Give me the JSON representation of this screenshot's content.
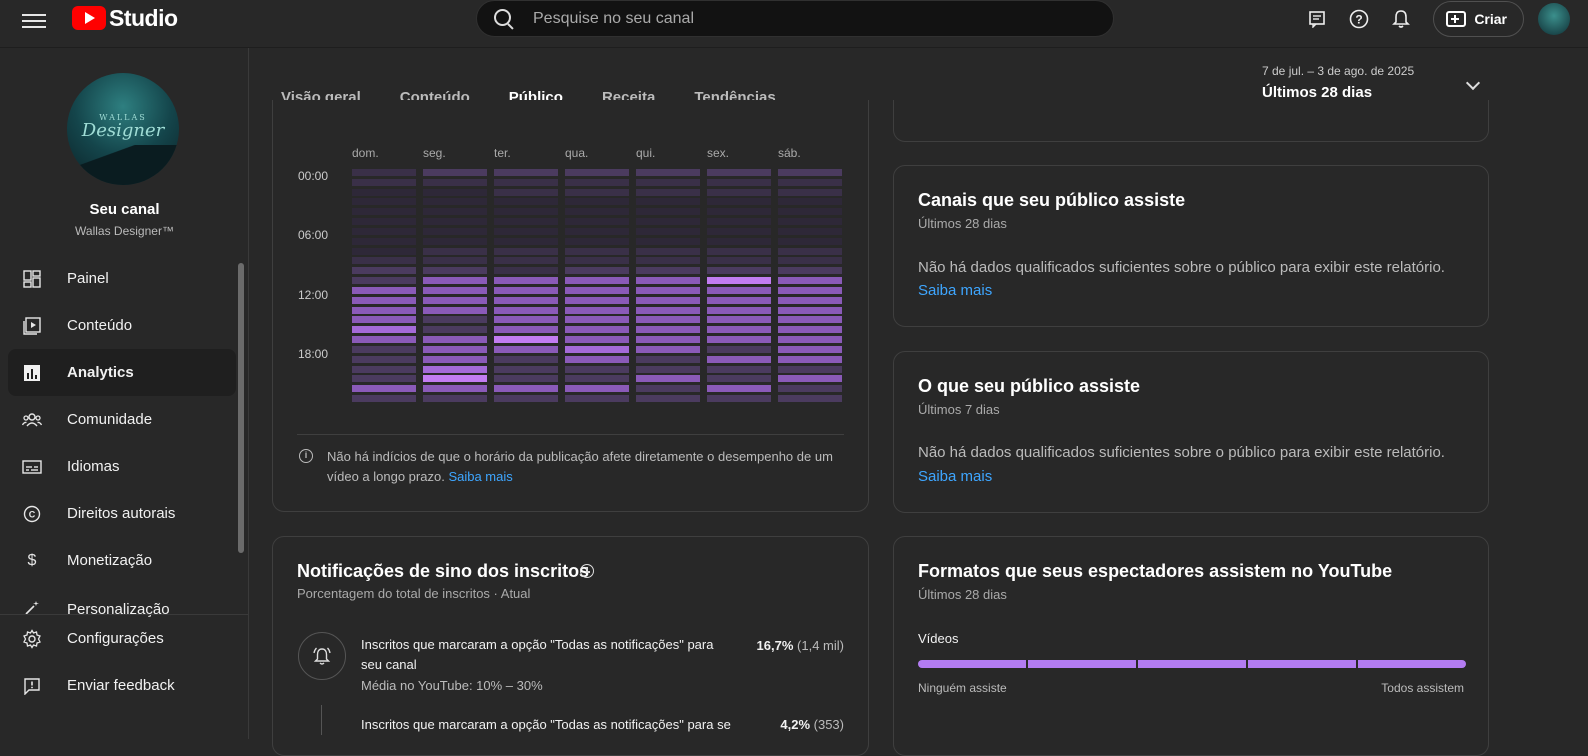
{
  "header": {
    "logo_text": "Studio",
    "search_placeholder": "Pesquise no seu canal",
    "create_label": "Criar"
  },
  "sidebar": {
    "channel_label": "Seu canal",
    "channel_name": "Wallas Designer™",
    "avatar_text_small": "WALLAS",
    "avatar_text_large": "Designer",
    "items": [
      {
        "label": "Painel",
        "icon": "dashboard-icon",
        "active": false
      },
      {
        "label": "Conteúdo",
        "icon": "content-icon",
        "active": false
      },
      {
        "label": "Analytics",
        "icon": "analytics-icon",
        "active": true
      },
      {
        "label": "Comunidade",
        "icon": "community-icon",
        "active": false
      },
      {
        "label": "Idiomas",
        "icon": "subtitles-icon",
        "active": false
      },
      {
        "label": "Direitos autorais",
        "icon": "copyright-icon",
        "active": false
      },
      {
        "label": "Monetização",
        "icon": "dollar-icon",
        "active": false
      },
      {
        "label": "Personalização",
        "icon": "magic-wand-icon",
        "active": false
      }
    ],
    "bottom_items": [
      {
        "label": "Configurações",
        "icon": "gear-icon"
      },
      {
        "label": "Enviar feedback",
        "icon": "feedback-icon"
      }
    ]
  },
  "tabs": [
    {
      "label": "Visão geral",
      "active": false
    },
    {
      "label": "Conteúdo",
      "active": false
    },
    {
      "label": "Público",
      "active": true
    },
    {
      "label": "Receita",
      "active": false
    },
    {
      "label": "Tendências",
      "active": false
    }
  ],
  "date_range": {
    "range": "7 de jul. – 3 de ago. de 2025",
    "label": "Últimos 28 dias"
  },
  "heatmap": {
    "days": [
      "dom.",
      "seg.",
      "ter.",
      "qua.",
      "qui.",
      "sex.",
      "sáb."
    ],
    "hour_labels": [
      "00:00",
      "06:00",
      "12:00",
      "18:00"
    ],
    "levels": [
      [
        1,
        1,
        0,
        0,
        0,
        0,
        0,
        0,
        0,
        1,
        2,
        2,
        3,
        3,
        3,
        3,
        4,
        3,
        2,
        2,
        2,
        2,
        3,
        2
      ],
      [
        2,
        1,
        0,
        0,
        0,
        0,
        0,
        0,
        1,
        1,
        2,
        3,
        3,
        3,
        3,
        2,
        2,
        3,
        3,
        3,
        4,
        5,
        3,
        2
      ],
      [
        2,
        1,
        1,
        0,
        0,
        0,
        0,
        0,
        1,
        1,
        1,
        3,
        3,
        3,
        3,
        3,
        3,
        5,
        3,
        2,
        2,
        2,
        3,
        2
      ],
      [
        2,
        1,
        1,
        0,
        0,
        0,
        0,
        0,
        1,
        1,
        2,
        3,
        3,
        3,
        3,
        3,
        3,
        3,
        4,
        3,
        2,
        2,
        3,
        2
      ],
      [
        2,
        1,
        1,
        0,
        0,
        0,
        0,
        0,
        1,
        1,
        2,
        3,
        3,
        3,
        3,
        3,
        3,
        3,
        3,
        2,
        2,
        3,
        2,
        2
      ],
      [
        2,
        1,
        1,
        0,
        0,
        0,
        0,
        0,
        1,
        1,
        2,
        5,
        3,
        3,
        3,
        3,
        3,
        3,
        2,
        3,
        2,
        2,
        3,
        2
      ],
      [
        2,
        1,
        1,
        0,
        0,
        0,
        0,
        0,
        1,
        1,
        2,
        3,
        3,
        3,
        3,
        3,
        3,
        3,
        3,
        3,
        2,
        3,
        2,
        2
      ]
    ],
    "note": "Não há indícios de que o horário da publicação afete diretamente o desempenho de um vídeo a longo prazo.",
    "note_link": "Saiba mais"
  },
  "channels_card": {
    "title": "Canais que seu público assiste",
    "sub": "Últimos 28 dias",
    "message": "Não há dados qualificados suficientes sobre o público para exibir este relatório.",
    "link": "Saiba mais"
  },
  "watch_card": {
    "title": "O que seu público assiste",
    "sub": "Últimos 7 dias",
    "message": "Não há dados qualificados suficientes sobre o público para exibir este relatório.",
    "link": "Saiba mais"
  },
  "notifications": {
    "title": "Notificações de sino dos inscritos",
    "sub": "Porcentagem do total de inscritos · Atual",
    "rows": [
      {
        "text": "Inscritos que marcaram a opção \"Todas as notificações\" para seu canal",
        "meta": "Média no YouTube: 10% – 30%",
        "pct": "16,7%",
        "count": "(1,4 mil)"
      },
      {
        "text": "Inscritos que marcaram a opção \"Todas as notificações\" para seu",
        "pct": "4,2%",
        "count": "(353)"
      }
    ]
  },
  "formats": {
    "title": "Formatos que seus espectadores assistem no YouTube",
    "sub": "Últimos 28 dias",
    "label": "Vídeos",
    "min_label": "Ninguém assiste",
    "max_label": "Todos assistem",
    "bar_color": "#b37cf2"
  },
  "colors": {
    "heat_levels": [
      "#2e2838",
      "#3a3048",
      "#4b3b5f",
      "#8a5ab8",
      "#a46ad8",
      "#c27cf2"
    ]
  }
}
